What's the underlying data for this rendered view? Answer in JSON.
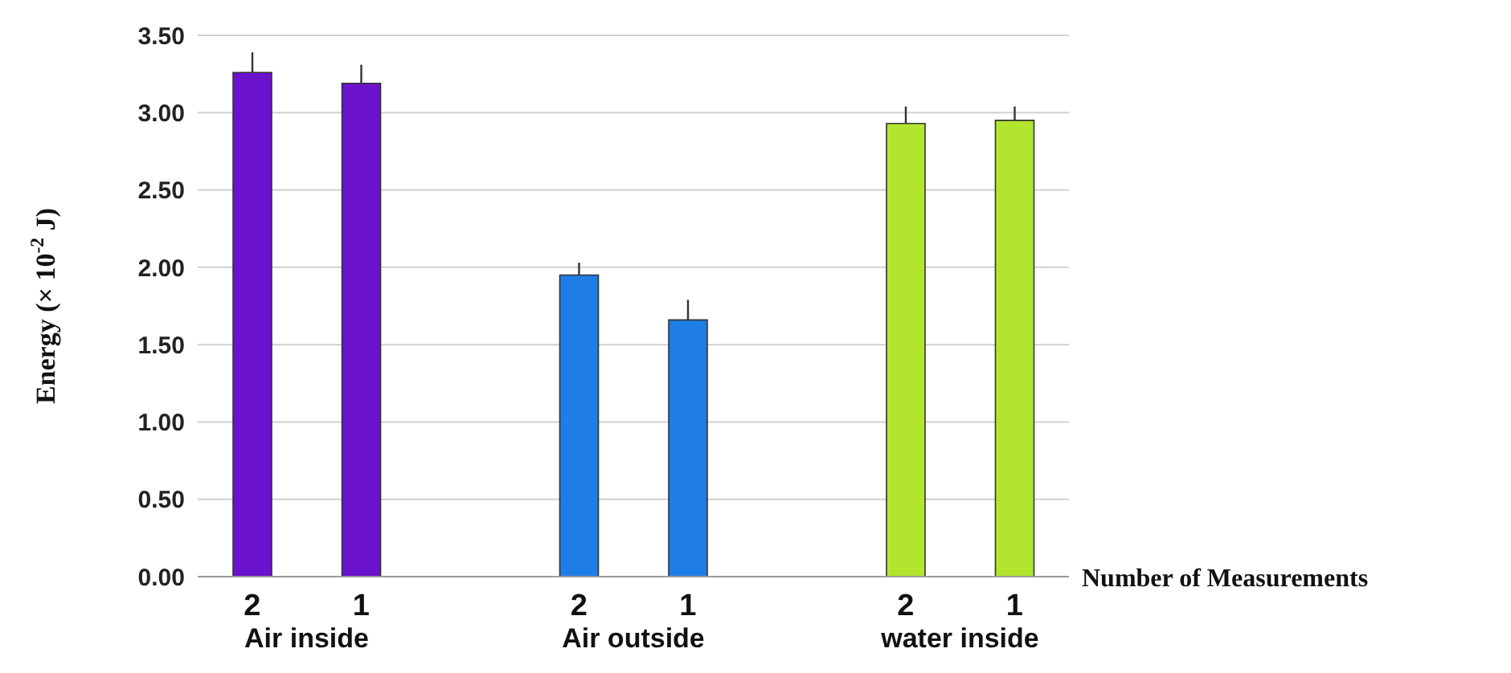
{
  "chart_data": {
    "type": "bar",
    "ylabel": "Energy (× 10$^{-2}$ J)",
    "xlabel": "Number of Measurements",
    "categories": [
      "2",
      "1",
      null,
      "2",
      "1",
      null,
      "2",
      "1"
    ],
    "values": [
      3.26,
      3.19,
      null,
      1.95,
      1.66,
      null,
      2.93,
      2.95
    ],
    "colors": [
      "#6a12cc",
      "#6a12cc",
      null,
      "#1f7de6",
      "#1f7de6",
      null,
      "#b2e62e",
      "#b2e62e"
    ],
    "errors": [
      [
        3.26,
        3.39
      ],
      [
        3.19,
        3.31
      ],
      null,
      [
        1.95,
        2.03
      ],
      [
        1.66,
        1.79
      ],
      null,
      [
        2.93,
        3.04
      ],
      [
        2.95,
        3.04
      ]
    ],
    "annotations": [
      "Air inside",
      "Air outside",
      "water inside"
    ],
    "ylim": [
      0,
      3.5
    ],
    "yticks": [
      {
        "value": 0,
        "label": "0.00"
      },
      {
        "value": 0.5,
        "label": "0.50"
      },
      {
        "value": 1,
        "label": "1.00"
      },
      {
        "value": 1.5,
        "label": "1.50"
      },
      {
        "value": 2,
        "label": "2.00"
      },
      {
        "value": 2.5,
        "label": "2.50"
      },
      {
        "value": 3,
        "label": "3.00"
      },
      {
        "value": 3.5,
        "label": "3.50"
      }
    ],
    "grid": "y"
  }
}
